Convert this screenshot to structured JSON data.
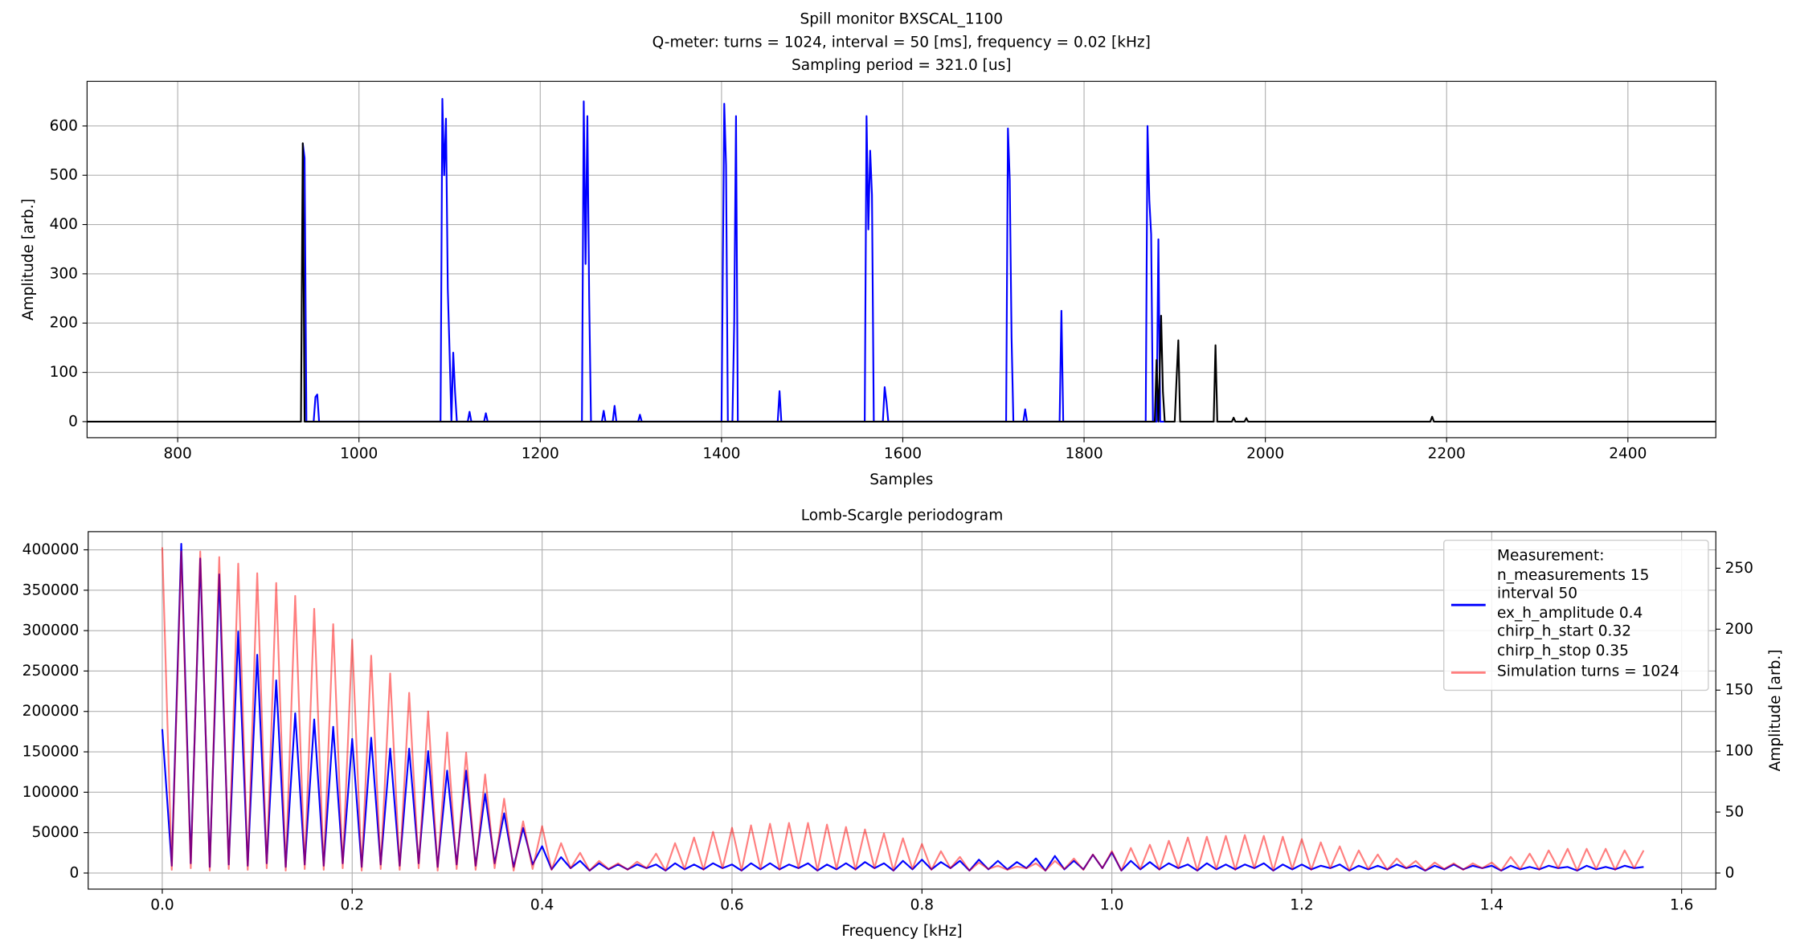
{
  "chart_data": [
    {
      "type": "line",
      "title": [
        "Spill monitor BXSCAL_1100",
        "Q-meter: turns = 1024, interval = 50 [ms], frequency = 0.02 [kHz]",
        "Sampling period = 321.0 [us]"
      ],
      "xlabel": "Samples",
      "ylabel": "Amplitude [arb.]",
      "xlim": [
        700,
        2497
      ],
      "ylim": [
        -32.6,
        690.6
      ],
      "xticks": [
        800,
        1000,
        1200,
        1400,
        1600,
        1800,
        2000,
        2200,
        2400
      ],
      "yticks": [
        0,
        100,
        200,
        300,
        400,
        500,
        600
      ],
      "grid": true,
      "series": [
        {
          "color": "#0000ff",
          "x": [
            938,
            940,
            942,
            950,
            952,
            954,
            956,
            1090,
            1092,
            1094,
            1096,
            1098,
            1100,
            1102,
            1104,
            1106,
            1108,
            1120,
            1122,
            1124,
            1138,
            1140,
            1142,
            1246,
            1248,
            1250,
            1252,
            1254,
            1256,
            1268,
            1270,
            1272,
            1280,
            1282,
            1284,
            1308,
            1310,
            1312,
            1400,
            1403,
            1405,
            1407,
            1412,
            1414,
            1416,
            1418,
            1462,
            1464,
            1466,
            1558,
            1560,
            1562,
            1564,
            1566,
            1568,
            1578,
            1580,
            1582,
            1584,
            1714,
            1716,
            1718,
            1720,
            1722,
            1733,
            1735,
            1737,
            1773,
            1775,
            1777,
            1868,
            1870,
            1872,
            1874,
            1876,
            1880,
            1882,
            1884,
            1890
          ],
          "values": [
            565,
            535,
            0,
            0,
            50,
            55,
            0,
            0,
            655,
            500,
            615,
            270,
            140,
            0,
            140,
            60,
            0,
            0,
            20,
            0,
            0,
            17,
            0,
            0,
            650,
            320,
            620,
            250,
            0,
            0,
            22,
            0,
            0,
            32,
            0,
            0,
            14,
            0,
            0,
            645,
            520,
            0,
            0,
            200,
            620,
            0,
            0,
            62,
            0,
            0,
            620,
            390,
            550,
            460,
            0,
            0,
            70,
            40,
            0,
            0,
            595,
            490,
            170,
            0,
            0,
            25,
            0,
            0,
            225,
            0,
            0,
            600,
            450,
            380,
            0,
            0,
            370,
            0,
            0
          ]
        },
        {
          "color": "#000000",
          "x": [
            700,
            936,
            938,
            940,
            1878,
            1880,
            1882,
            1885,
            1887,
            1889,
            1900,
            1902,
            1904,
            1906,
            1943,
            1945,
            1947,
            1963,
            1965,
            1967,
            1977,
            1979,
            1981,
            2182,
            2184,
            2186,
            2497
          ],
          "values": [
            0,
            0,
            565,
            0,
            0,
            125,
            0,
            215,
            60,
            0,
            0,
            85,
            165,
            0,
            0,
            155,
            0,
            0,
            8,
            0,
            0,
            7,
            0,
            0,
            10,
            0,
            0
          ]
        }
      ]
    },
    {
      "type": "line",
      "title": "Lomb-Scargle periodogram",
      "xlabel": "Frequency [kHz]",
      "y2label": "Amplitude [arb.]",
      "xlim": [
        -0.078,
        1.636
      ],
      "ylim": [
        -19900,
        422500
      ],
      "y2lim": [
        -13.2,
        280
      ],
      "xticks": [
        {
          "value": 0,
          "label": "0.0"
        },
        0.2,
        0.4,
        0.6,
        0.8,
        {
          "value": 1,
          "label": "1.0"
        },
        1.2,
        1.4,
        1.6
      ],
      "yticks": [
        0,
        50000,
        100000,
        150000,
        200000,
        250000,
        300000,
        350000,
        400000
      ],
      "y2ticks": [
        0,
        50,
        100,
        150,
        200,
        250
      ],
      "grid": true,
      "legend": "upper right",
      "x": [
        0,
        0.01,
        0.02,
        0.03,
        0.04,
        0.05,
        0.06,
        0.07,
        0.08,
        0.09,
        0.1,
        0.11,
        0.12,
        0.13,
        0.14,
        0.15,
        0.16,
        0.17,
        0.18,
        0.19,
        0.2,
        0.21,
        0.22,
        0.23,
        0.24,
        0.25,
        0.26,
        0.27,
        0.28,
        0.29,
        0.3,
        0.31,
        0.32,
        0.33,
        0.34,
        0.35,
        0.36,
        0.37,
        0.38,
        0.39,
        0.4,
        0.41,
        0.42,
        0.43,
        0.44,
        0.45,
        0.46,
        0.47,
        0.48,
        0.49,
        0.5,
        0.51,
        0.52,
        0.53,
        0.54,
        0.55,
        0.56,
        0.57,
        0.58,
        0.59,
        0.6,
        0.61,
        0.62,
        0.63,
        0.64,
        0.65,
        0.66,
        0.67,
        0.68,
        0.69,
        0.7,
        0.71,
        0.72,
        0.73,
        0.74,
        0.75,
        0.76,
        0.77,
        0.78,
        0.79,
        0.8,
        0.81,
        0.82,
        0.83,
        0.84,
        0.85,
        0.86,
        0.87,
        0.88,
        0.89,
        0.9,
        0.91,
        0.92,
        0.93,
        0.94,
        0.95,
        0.96,
        0.97,
        0.98,
        0.99,
        1,
        1.01,
        1.02,
        1.03,
        1.04,
        1.05,
        1.06,
        1.07,
        1.08,
        1.09,
        1.1,
        1.11,
        1.12,
        1.13,
        1.14,
        1.15,
        1.16,
        1.17,
        1.18,
        1.19,
        1.2,
        1.21,
        1.22,
        1.23,
        1.24,
        1.25,
        1.26,
        1.27,
        1.28,
        1.29,
        1.3,
        1.31,
        1.32,
        1.33,
        1.34,
        1.35,
        1.36,
        1.37,
        1.38,
        1.39,
        1.4,
        1.41,
        1.42,
        1.43,
        1.44,
        1.45,
        1.46,
        1.47,
        1.48,
        1.49,
        1.5,
        1.51,
        1.52,
        1.53,
        1.54,
        1.55,
        1.56
      ],
      "series": [
        {
          "name": "Measurement:\nn_measurements 15\ninterval 50\nex_h_amplitude 0.4\nchirp_h_start 0.32\nchirp_h_stop 0.35",
          "color": "#0000ff",
          "axis": "y2",
          "values": [
            118,
            6,
            270,
            8,
            258,
            5,
            245,
            7,
            198,
            6,
            179,
            8,
            158,
            5,
            131,
            7,
            126,
            6,
            120,
            8,
            110,
            5,
            111,
            7,
            102,
            6,
            102,
            8,
            100,
            5,
            84,
            7,
            84,
            6,
            65,
            8,
            49,
            5,
            37,
            7,
            22,
            3,
            13,
            4,
            10,
            2,
            8,
            3,
            7,
            3,
            7,
            4,
            7,
            2,
            8,
            3,
            7,
            3,
            8,
            4,
            7,
            2,
            8,
            3,
            8,
            3,
            7,
            4,
            8,
            2,
            7,
            3,
            8,
            3,
            9,
            4,
            8,
            2,
            10,
            3,
            11,
            3,
            9,
            4,
            10,
            2,
            11,
            3,
            10,
            3,
            9,
            4,
            12,
            2,
            14,
            3,
            10,
            3,
            15,
            4,
            17,
            2,
            10,
            3,
            9,
            3,
            8,
            4,
            7,
            2,
            8,
            3,
            7,
            3,
            7,
            4,
            8,
            2,
            7,
            3,
            7,
            3,
            6,
            4,
            7,
            2,
            6,
            3,
            6,
            3,
            7,
            4,
            6,
            2,
            6,
            3,
            7,
            3,
            6,
            4,
            6,
            2,
            6,
            3,
            5,
            3,
            6,
            4,
            5,
            2,
            6,
            3,
            5,
            3,
            6,
            4,
            5
          ]
        },
        {
          "name": "Simulation turns = 1024",
          "color": "#ff0000",
          "alpha": 0.5,
          "values": [
            403000,
            4000,
            398000,
            6000,
            398000,
            3000,
            391000,
            5000,
            383000,
            4000,
            371000,
            6000,
            359000,
            3000,
            343000,
            5000,
            327000,
            4000,
            308000,
            6000,
            289000,
            3000,
            269000,
            5000,
            247000,
            4000,
            223000,
            6000,
            200000,
            3000,
            174000,
            5000,
            149000,
            4000,
            122000,
            6000,
            92000,
            3000,
            64000,
            5000,
            58000,
            4000,
            37000,
            6000,
            25000,
            3000,
            15000,
            5000,
            12000,
            4000,
            14000,
            6000,
            24000,
            3000,
            37000,
            5000,
            44000,
            4000,
            51000,
            6000,
            56000,
            3000,
            59000,
            5000,
            61000,
            4000,
            62000,
            6000,
            62000,
            3000,
            60000,
            5000,
            57000,
            4000,
            54000,
            6000,
            49000,
            3000,
            43000,
            5000,
            36000,
            4000,
            27000,
            6000,
            20000,
            3000,
            13000,
            5000,
            9000,
            4000,
            8000,
            6000,
            12000,
            3000,
            15000,
            5000,
            18000,
            4000,
            23000,
            6000,
            27000,
            3000,
            31000,
            5000,
            35000,
            4000,
            40000,
            6000,
            44000,
            3000,
            45000,
            5000,
            46000,
            4000,
            47000,
            6000,
            46000,
            3000,
            45000,
            5000,
            42000,
            4000,
            38000,
            6000,
            33000,
            3000,
            28000,
            5000,
            23000,
            4000,
            18000,
            6000,
            15000,
            3000,
            13000,
            5000,
            12000,
            4000,
            12000,
            6000,
            13000,
            3000,
            20000,
            5000,
            24000,
            4000,
            28000,
            6000,
            30000,
            3000,
            30000,
            5000,
            30000,
            4000,
            28000,
            6000,
            28000
          ]
        }
      ]
    }
  ]
}
